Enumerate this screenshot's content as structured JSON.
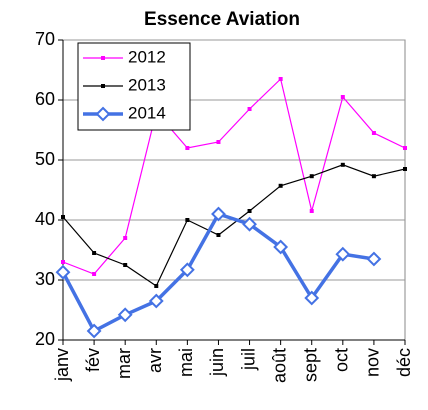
{
  "chart_data": {
    "type": "line",
    "title": "Essence Aviation",
    "categories": [
      "janv",
      "fév",
      "mar",
      "avr",
      "mai",
      "juin",
      "juil",
      "août",
      "sept",
      "oct",
      "nov",
      "déc"
    ],
    "series": [
      {
        "name": "2012",
        "color": "#ff00ff",
        "values": [
          33,
          31,
          37,
          58,
          52,
          53,
          58.5,
          63.5,
          41.5,
          60.5,
          54.5,
          52
        ]
      },
      {
        "name": "2013",
        "color": "#000000",
        "values": [
          40.5,
          34.5,
          32.5,
          29,
          40,
          37.5,
          41.5,
          45.7,
          47.3,
          49.2,
          47.3,
          48.5
        ]
      },
      {
        "name": "2014",
        "color": "#4472e4",
        "values": [
          31.3,
          21.5,
          24.2,
          26.5,
          31.7,
          41,
          39.3,
          35.5,
          27,
          34.3,
          33.5,
          null
        ]
      }
    ],
    "ylim": [
      20,
      70
    ],
    "yticks": [
      20,
      30,
      40,
      50,
      60,
      70
    ],
    "grid": true,
    "legend": "upper left"
  }
}
